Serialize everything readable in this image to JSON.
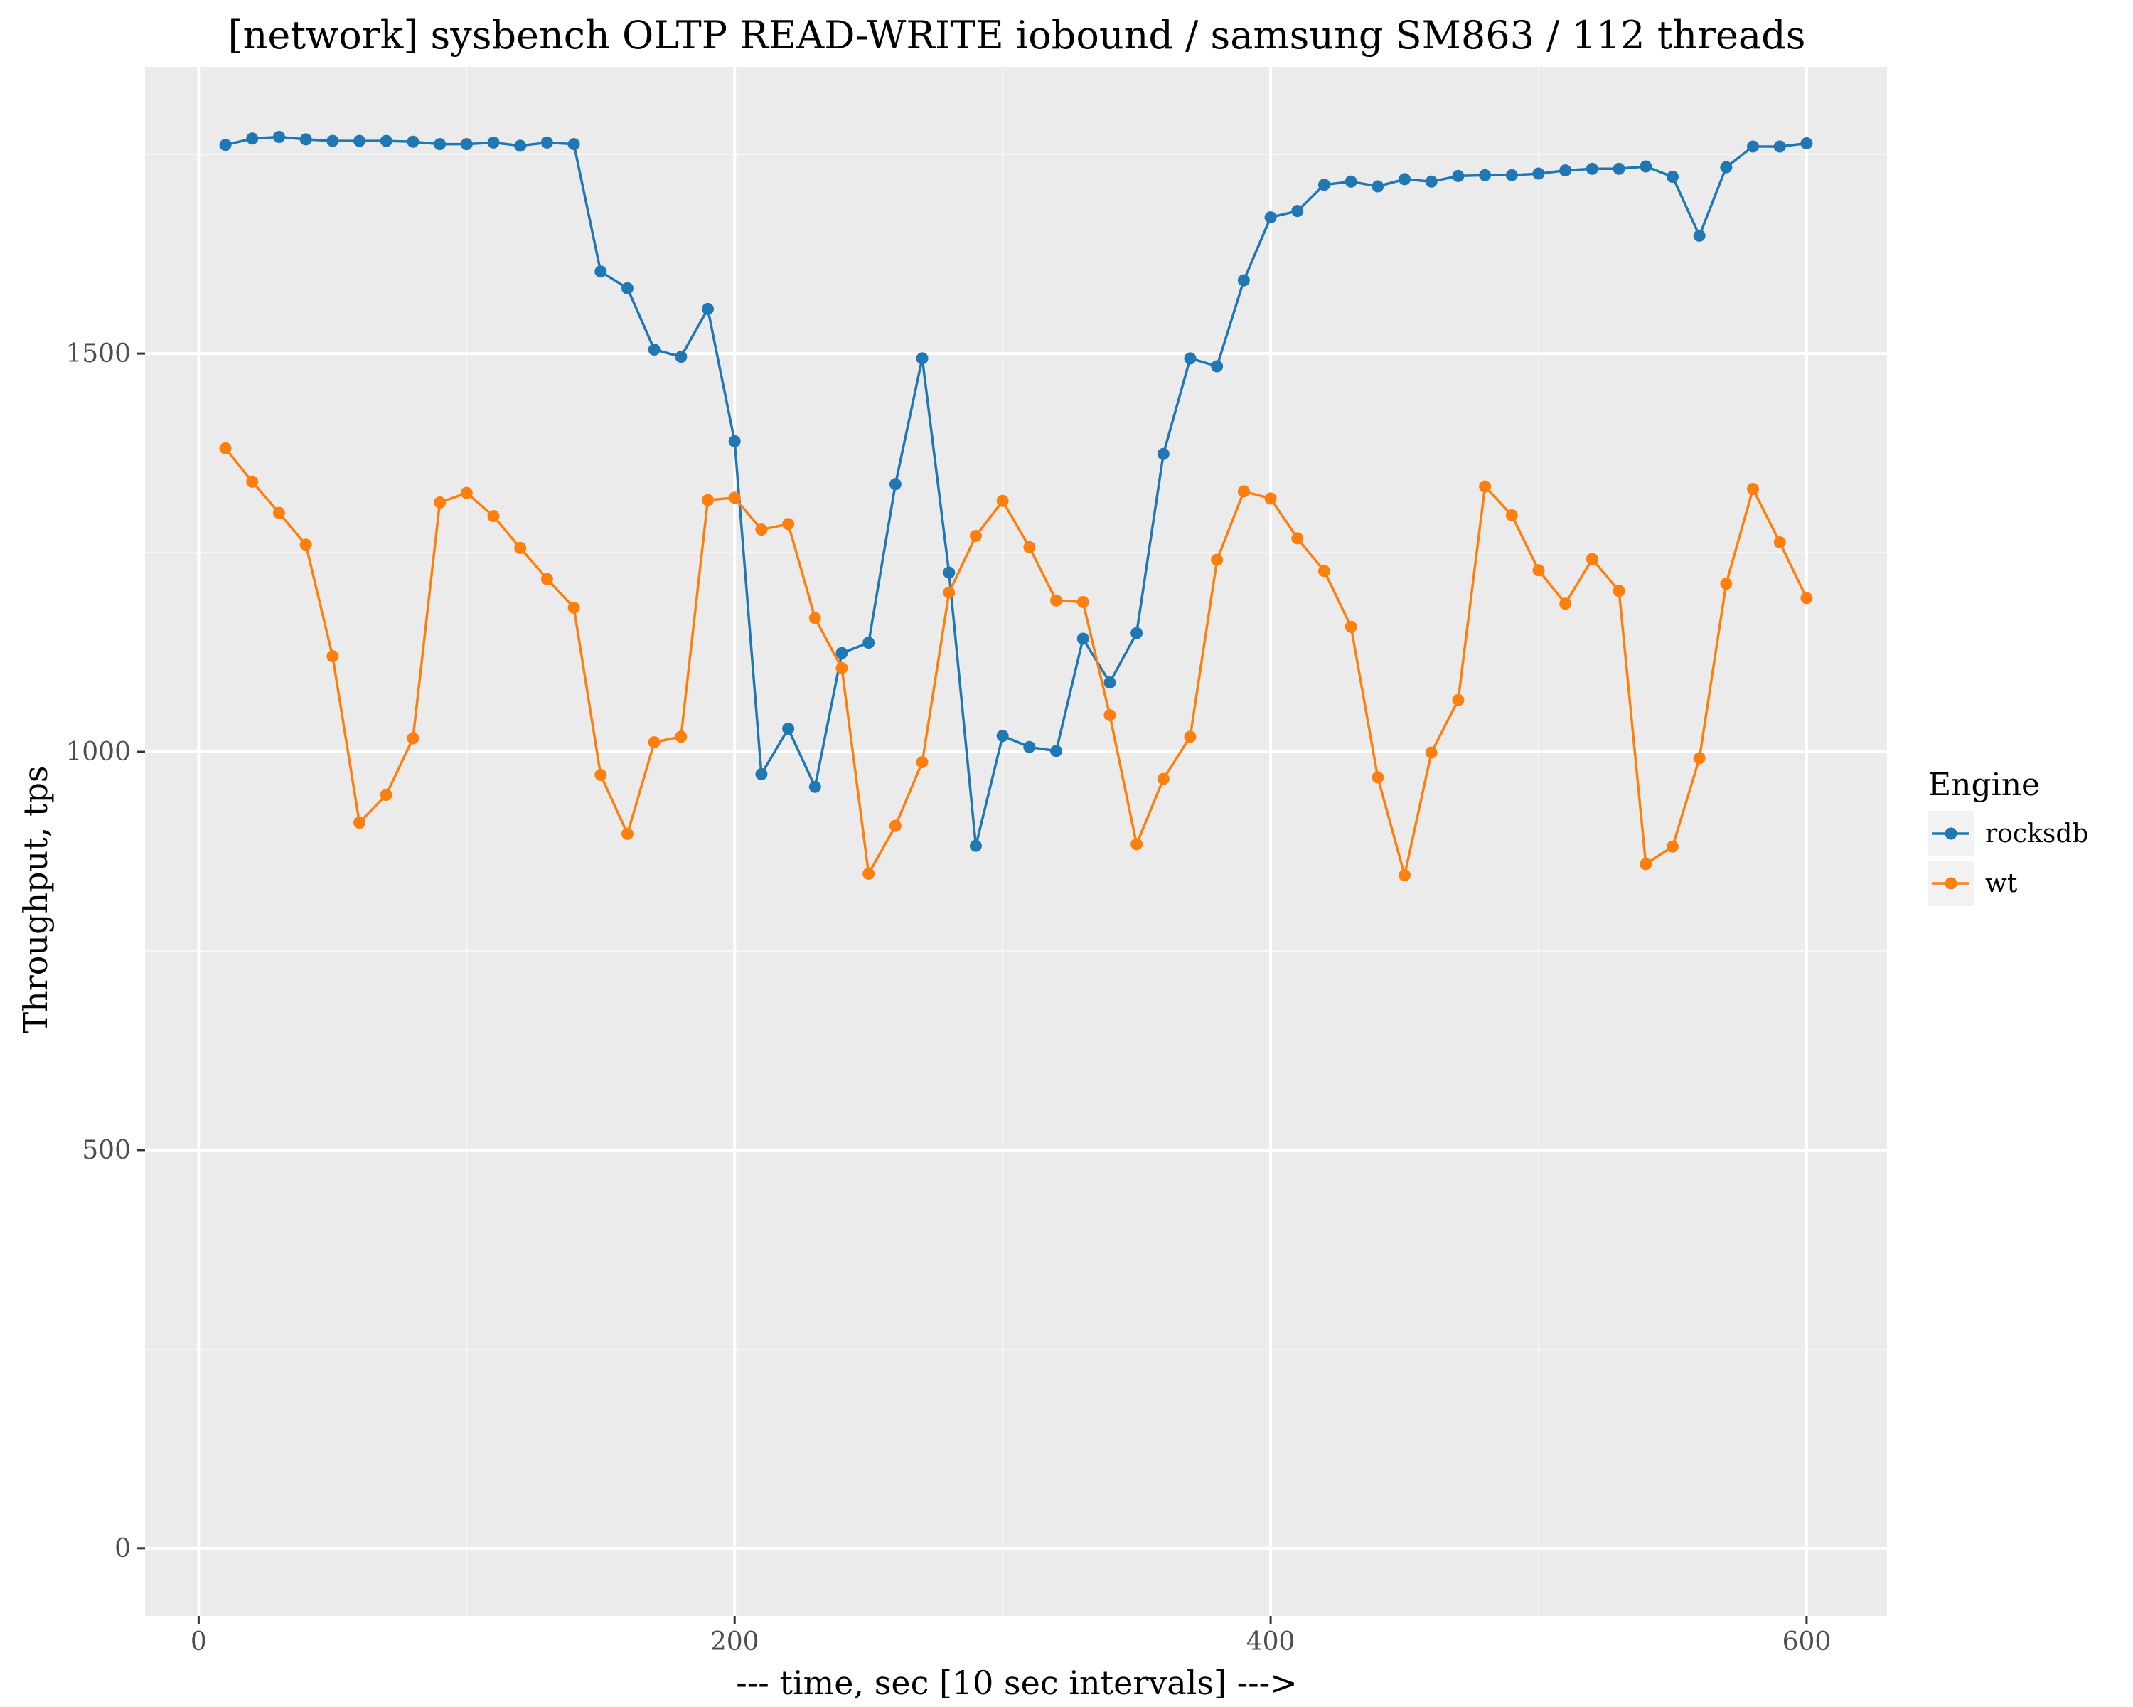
{
  "chart_data": {
    "type": "line",
    "title": "[network] sysbench OLTP READ-WRITE iobound / samsung SM863 / 112 threads",
    "xlabel": "--- time, sec [10 sec intervals] --->",
    "ylabel": "Throughput, tps",
    "xlim": [
      -20,
      630
    ],
    "ylim": [
      -85,
      1860
    ],
    "x_ticks": [
      0,
      200,
      400,
      600
    ],
    "y_ticks": [
      0,
      500,
      1000,
      1500
    ],
    "grid": true,
    "background": "#ebebeb",
    "legend": {
      "title": "Engine",
      "position": "right"
    },
    "x": [
      10,
      20,
      30,
      40,
      50,
      60,
      70,
      80,
      90,
      100,
      110,
      120,
      130,
      140,
      150,
      160,
      170,
      180,
      190,
      200,
      210,
      220,
      230,
      240,
      250,
      260,
      270,
      280,
      290,
      300,
      310,
      320,
      330,
      340,
      350,
      360,
      370,
      380,
      390,
      400,
      410,
      420,
      430,
      440,
      450,
      460,
      470,
      480,
      490,
      500,
      510,
      520,
      530,
      540,
      550,
      560,
      570,
      580,
      590,
      600
    ],
    "series": [
      {
        "name": "rocksdb",
        "color": "#1f77b4",
        "values": [
          1762,
          1770,
          1772,
          1769,
          1767,
          1767,
          1767,
          1766,
          1763,
          1763,
          1765,
          1761,
          1765,
          1763,
          1603,
          1582,
          1505,
          1496,
          1556,
          1390,
          972,
          1029,
          956,
          1124,
          1137,
          1336,
          1494,
          1225,
          882,
          1020,
          1006,
          1001,
          1142,
          1087,
          1149,
          1374,
          1494,
          1484,
          1592,
          1671,
          1679,
          1712,
          1716,
          1710,
          1719,
          1716,
          1723,
          1724,
          1724,
          1726,
          1730,
          1732,
          1732,
          1735,
          1722,
          1648,
          1734,
          1760,
          1760,
          1764
        ]
      },
      {
        "name": "wt",
        "color": "#ff7f0e",
        "values": [
          1381,
          1339,
          1300,
          1260,
          1120,
          911,
          946,
          1017,
          1313,
          1325,
          1296,
          1256,
          1217,
          1181,
          971,
          897,
          1012,
          1019,
          1316,
          1319,
          1279,
          1286,
          1168,
          1105,
          847,
          907,
          987,
          1200,
          1271,
          1315,
          1257,
          1190,
          1188,
          1046,
          884,
          966,
          1019,
          1241,
          1327,
          1318,
          1268,
          1227,
          1157,
          968,
          845,
          999,
          1065,
          1333,
          1297,
          1228,
          1186,
          1242,
          1202,
          859,
          881,
          992,
          1211,
          1330,
          1263,
          1193
        ]
      }
    ]
  }
}
